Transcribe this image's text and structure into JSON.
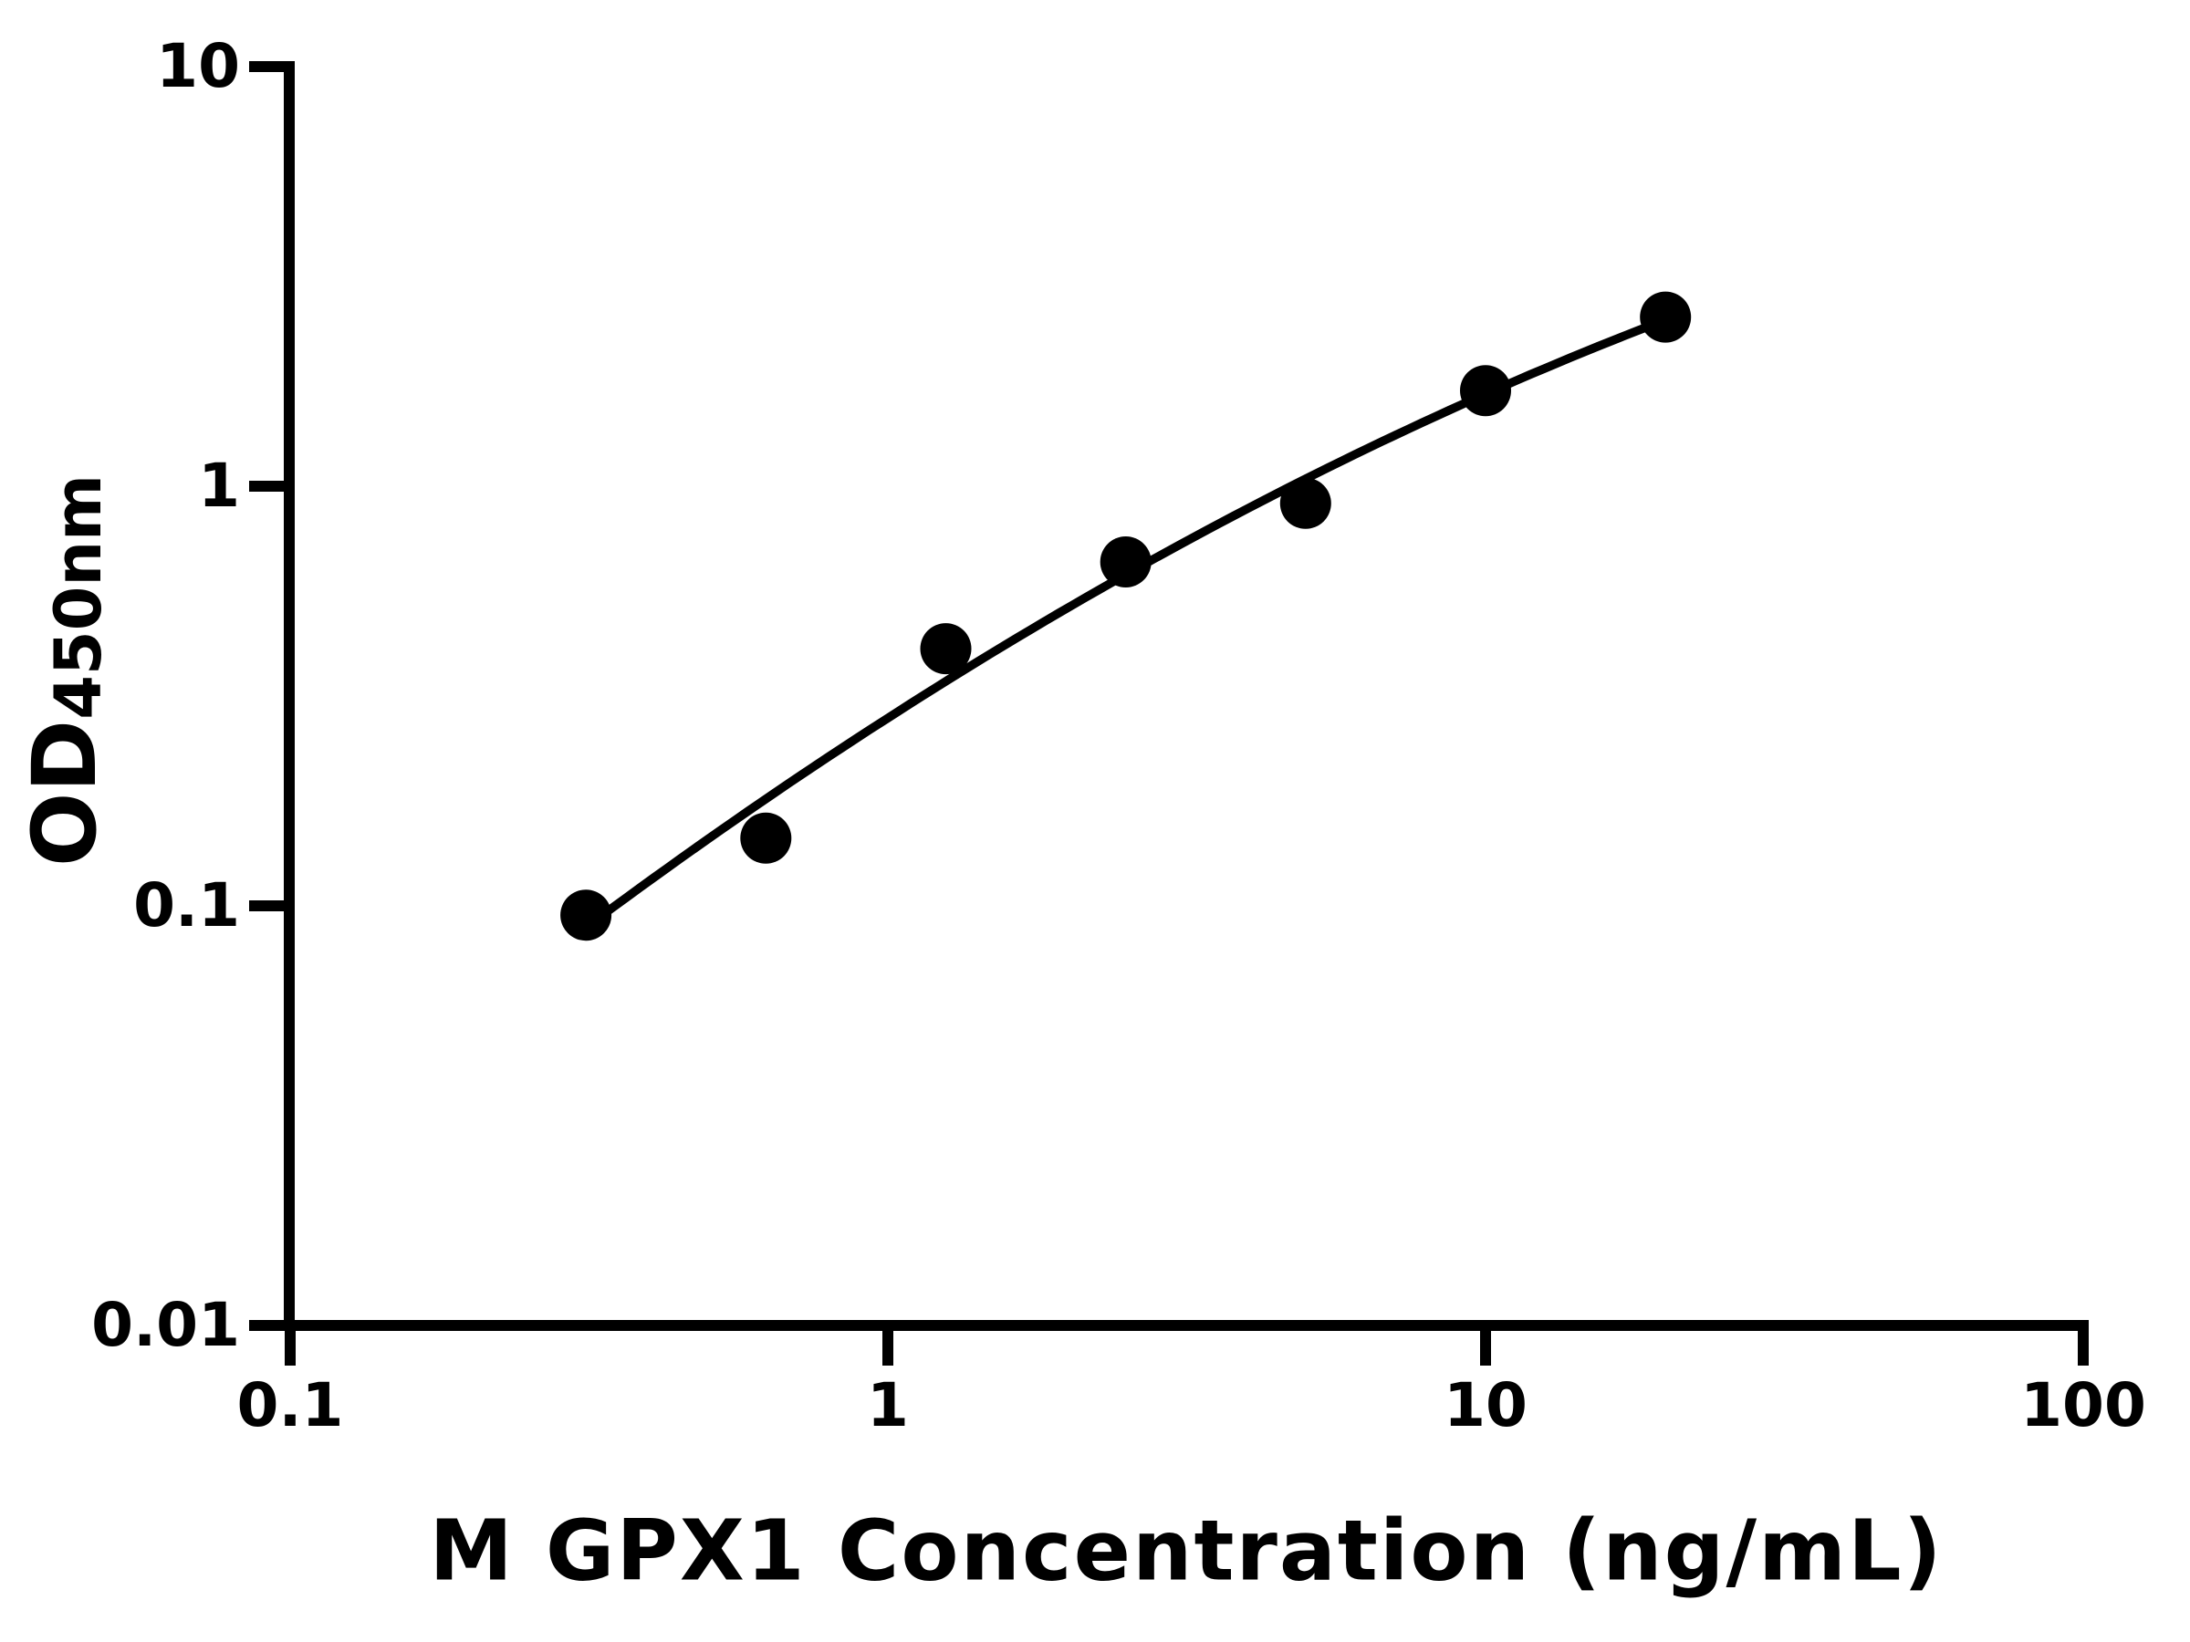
{
  "figure": {
    "background_color": "#ffffff",
    "foreground_color": "#000000"
  },
  "chart_data": {
    "type": "scatter",
    "title": "",
    "xlabel": "M GPX1 Concentration (ng/mL)",
    "ylabel": "OD450nm",
    "ylabel_parts": {
      "main": "OD",
      "sub": "450nm"
    },
    "xscale": "log",
    "yscale": "log",
    "xlim": [
      0.1,
      100
    ],
    "ylim": [
      0.01,
      10
    ],
    "x": [
      0.3125,
      0.625,
      1.25,
      2.5,
      5,
      10,
      20
    ],
    "y": [
      0.095,
      0.145,
      0.41,
      0.66,
      0.91,
      1.69,
      2.53
    ],
    "x_ticks": {
      "values": [
        0.1,
        1,
        10,
        100
      ],
      "labels": [
        "0.1",
        "1",
        "10",
        "100"
      ]
    },
    "y_ticks": {
      "values": [
        10,
        1,
        0.1,
        0.01
      ],
      "labels": [
        "10",
        "1",
        "0.1",
        "0.01"
      ]
    },
    "fit_curve": "smooth regression curve through points, drawn from first to last point",
    "grid": false,
    "legend": false,
    "marker_shape": "filled-circle",
    "marker_color": "#000000",
    "line_color": "#000000"
  }
}
